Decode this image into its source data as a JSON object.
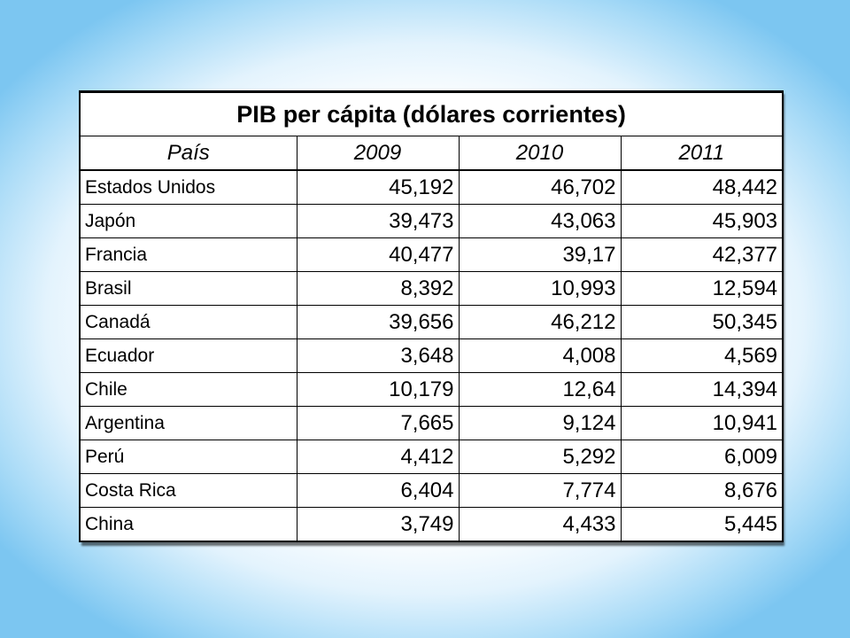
{
  "table": {
    "title": "PIB per cápita (dólares corrientes)",
    "headers": [
      "País",
      "2009",
      "2010",
      "2011"
    ],
    "rows": [
      {
        "country": "Estados Unidos",
        "values": [
          "45,192",
          "46,702",
          "48,442"
        ]
      },
      {
        "country": "Japón",
        "values": [
          "39,473",
          "43,063",
          "45,903"
        ]
      },
      {
        "country": "Francia",
        "values": [
          "40,477",
          "39,17",
          "42,377"
        ]
      },
      {
        "country": "Brasil",
        "values": [
          "8,392",
          "10,993",
          "12,594"
        ]
      },
      {
        "country": "Canadá",
        "values": [
          "39,656",
          "46,212",
          "50,345"
        ]
      },
      {
        "country": "Ecuador",
        "values": [
          "3,648",
          "4,008",
          "4,569"
        ]
      },
      {
        "country": "Chile",
        "values": [
          "10,179",
          "12,64",
          "14,394"
        ]
      },
      {
        "country": "Argentina",
        "values": [
          "7,665",
          "9,124",
          "10,941"
        ]
      },
      {
        "country": "Perú",
        "values": [
          "4,412",
          "5,292",
          "6,009"
        ]
      },
      {
        "country": "Costa Rica",
        "values": [
          "6,404",
          "7,774",
          "8,676"
        ]
      },
      {
        "country": "China",
        "values": [
          "3,749",
          "4,433",
          "5,445"
        ]
      }
    ]
  },
  "colors": {
    "background_edge": "#7cc6f1",
    "background_center": "#ffffff",
    "grid": "#000000"
  }
}
